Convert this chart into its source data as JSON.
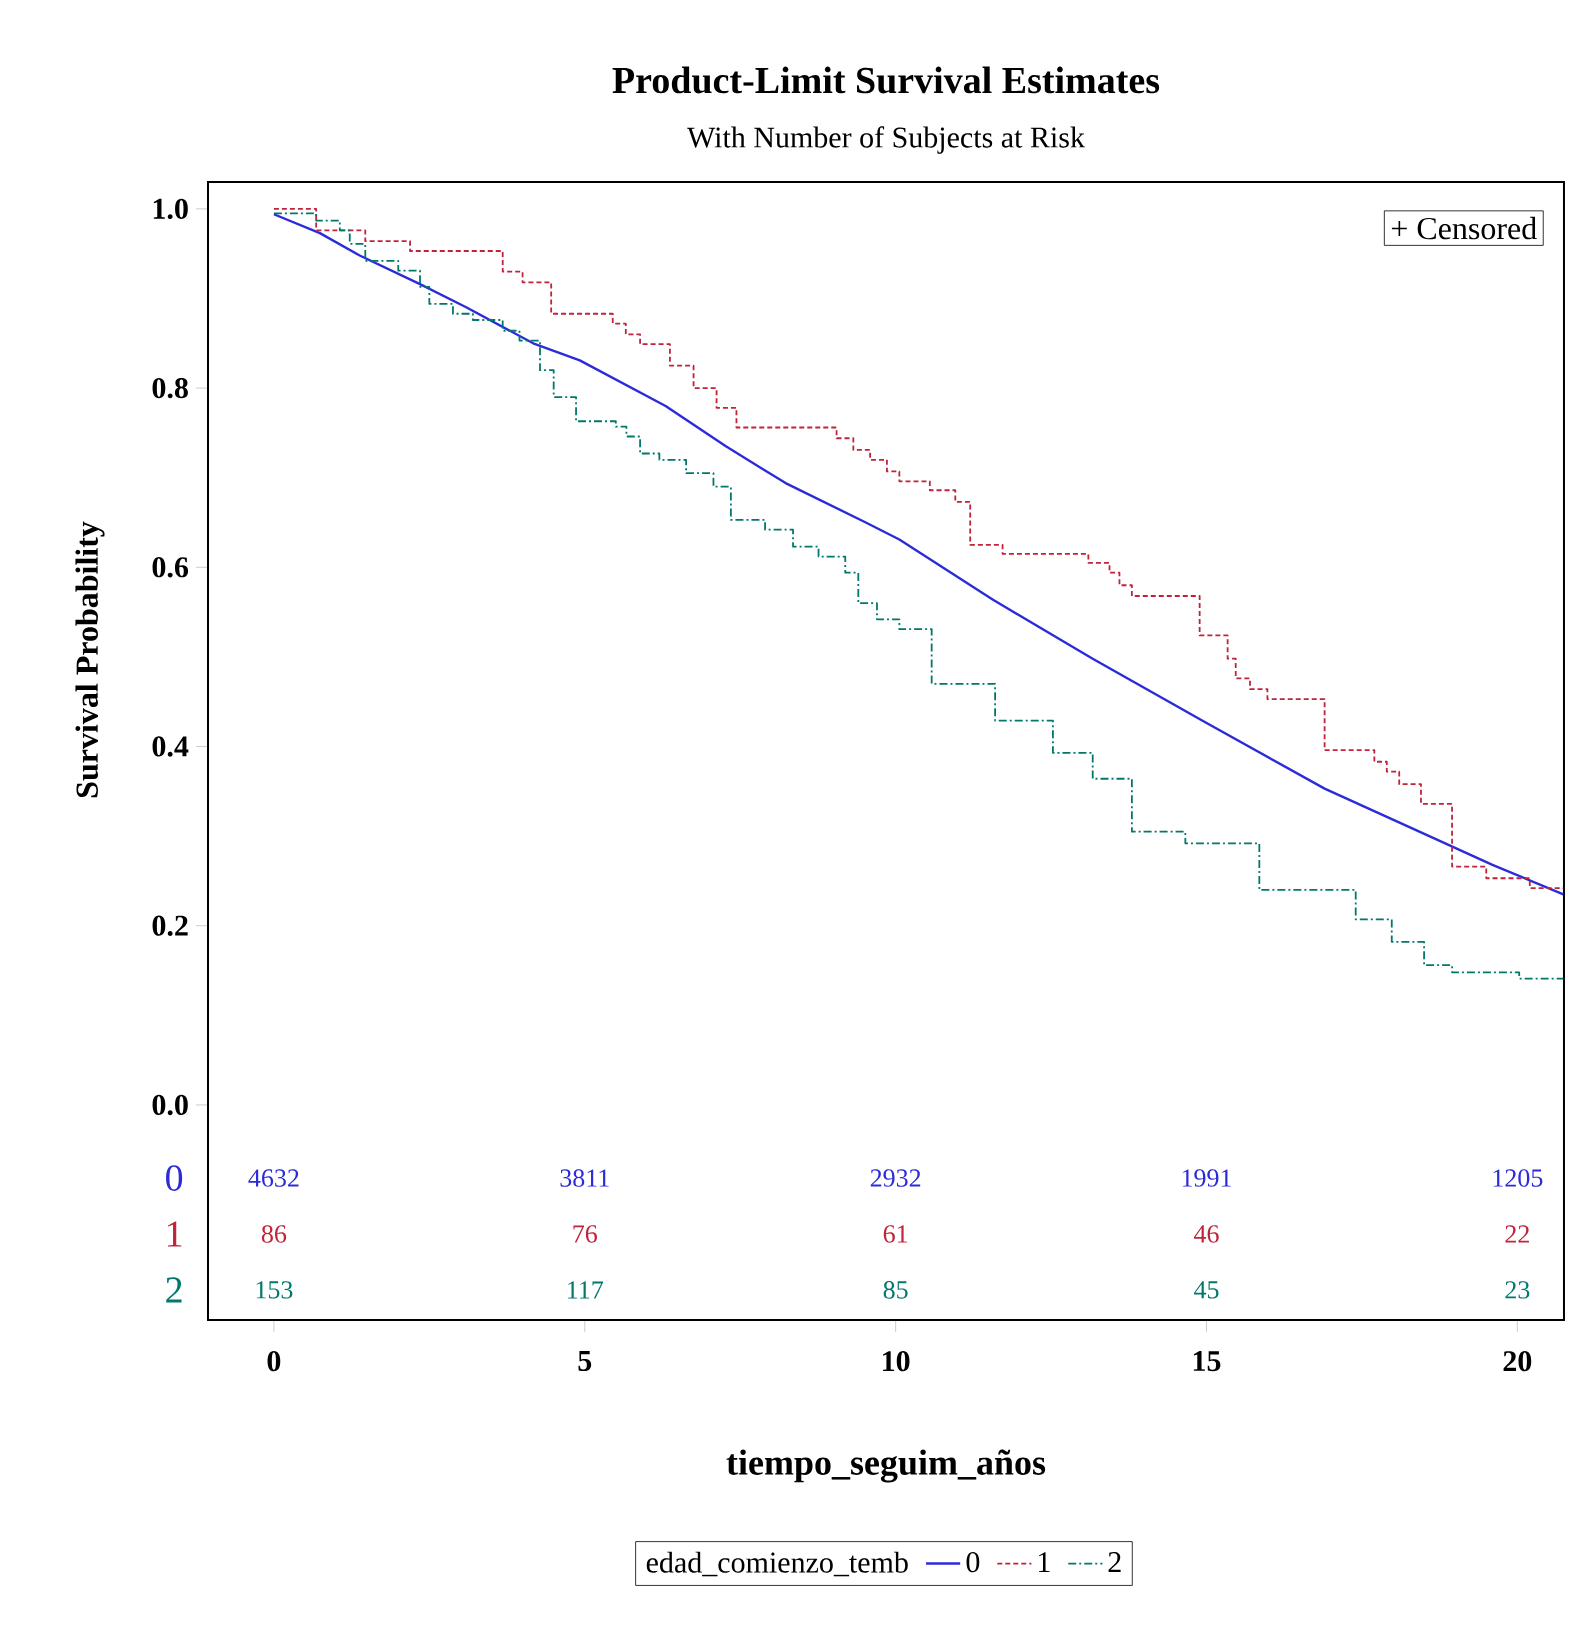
{
  "chart_data": {
    "type": "step",
    "title": "Product-Limit Survival Estimates",
    "subtitle": "With Number of Subjects at Risk",
    "xlabel": "tiempo_seguim_años",
    "ylabel": "Survival Probability",
    "legend_title": "edad_comienzo_temb",
    "legend": "bottom",
    "xlim": [
      -1.06,
      20.75
    ],
    "ylim": [
      -0.24,
      1.03
    ],
    "xticks": [
      0,
      5,
      10,
      15,
      20
    ],
    "yticks": [
      {
        "value": 0,
        "label": "0.0"
      },
      {
        "value": 0.2,
        "label": "0.2"
      },
      {
        "value": 0.4,
        "label": "0.4"
      },
      {
        "value": 0.6,
        "label": "0.6"
      },
      {
        "value": 0.8,
        "label": "0.8"
      },
      {
        "value": 1,
        "label": "1.0"
      }
    ],
    "series": [
      {
        "name": "0",
        "type": "line",
        "color": "#2b2bd9",
        "line_style": "solid",
        "x": [
          0,
          0.74,
          1.38,
          2.35,
          3.1,
          4.17,
          4.92,
          6.3,
          7.27,
          8.23,
          9.52,
          10.06,
          11.56,
          13.17,
          14.98,
          16.9,
          18.3,
          19.6,
          20.74
        ],
        "values": [
          0.994,
          0.973,
          0.948,
          0.916,
          0.89,
          0.85,
          0.831,
          0.78,
          0.735,
          0.694,
          0.65,
          0.631,
          0.564,
          0.498,
          0.427,
          0.353,
          0.309,
          0.268,
          0.235
        ]
      },
      {
        "name": "1",
        "color": "#c0233a",
        "line_style": "dashed",
        "x": [
          0,
          0.68,
          1.47,
          2.19,
          3.68,
          4.0,
          4.46,
          5.45,
          5.66,
          5.89,
          6.37,
          6.75,
          7.12,
          7.44,
          9.05,
          9.32,
          9.59,
          9.86,
          10.06,
          10.55,
          10.96,
          11.2,
          11.72,
          13.1,
          13.44,
          13.6,
          13.8,
          14.89,
          15.34,
          15.47,
          15.7,
          15.98,
          16.9,
          17.7,
          17.9,
          18.1,
          18.45,
          18.95,
          19.5,
          20.2,
          20.74
        ],
        "values": [
          1.0,
          0.976,
          0.964,
          0.953,
          0.93,
          0.918,
          0.883,
          0.872,
          0.86,
          0.849,
          0.825,
          0.8,
          0.778,
          0.756,
          0.744,
          0.731,
          0.72,
          0.707,
          0.696,
          0.686,
          0.673,
          0.625,
          0.615,
          0.605,
          0.594,
          0.58,
          0.568,
          0.524,
          0.498,
          0.476,
          0.464,
          0.453,
          0.396,
          0.383,
          0.372,
          0.358,
          0.336,
          0.266,
          0.253,
          0.242,
          0.242
        ]
      },
      {
        "name": "2",
        "color": "#00786b",
        "line_style": "dashdot",
        "x": [
          0,
          0.68,
          1.06,
          1.22,
          1.47,
          2.0,
          2.35,
          2.5,
          2.88,
          3.2,
          3.68,
          3.95,
          4.28,
          4.5,
          4.86,
          5.5,
          5.67,
          5.89,
          6.2,
          6.63,
          7.07,
          7.35,
          7.9,
          8.35,
          8.76,
          9.19,
          9.4,
          9.7,
          10.06,
          10.58,
          11.6,
          12.53,
          13.17,
          13.8,
          14.66,
          15.85,
          17.4,
          17.98,
          18.5,
          18.95,
          20.03,
          20.74
        ],
        "values": [
          0.995,
          0.987,
          0.976,
          0.961,
          0.942,
          0.931,
          0.913,
          0.894,
          0.883,
          0.876,
          0.864,
          0.853,
          0.82,
          0.79,
          0.763,
          0.757,
          0.746,
          0.727,
          0.72,
          0.705,
          0.69,
          0.653,
          0.642,
          0.623,
          0.612,
          0.594,
          0.56,
          0.542,
          0.531,
          0.47,
          0.429,
          0.393,
          0.364,
          0.305,
          0.292,
          0.24,
          0.207,
          0.182,
          0.156,
          0.148,
          0.141,
          0.141
        ]
      }
    ],
    "annotations": [
      "+ Censored",
      "4632",
      "3811",
      "2932",
      "1991",
      "1205",
      "86",
      "76",
      "61",
      "46",
      "22",
      "153",
      "117",
      "85",
      "45",
      "23"
    ]
  }
}
